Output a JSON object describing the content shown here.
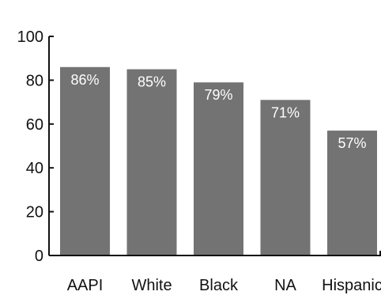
{
  "chart_data": {
    "type": "bar",
    "categories": [
      "AAPI",
      "White",
      "Black",
      "NA",
      "Hispanic"
    ],
    "values": [
      86,
      85,
      79,
      71,
      57
    ],
    "data_labels": [
      "86%",
      "85%",
      "79%",
      "71%",
      "57%"
    ],
    "yticks": [
      0,
      20,
      40,
      60,
      80,
      100
    ],
    "ytick_labels": [
      "0",
      "20",
      "40",
      "60",
      "80",
      "100"
    ],
    "ylim": [
      0,
      100
    ],
    "grid": false,
    "colors": {
      "bar": "#737373",
      "axis": "#111111",
      "data_label": "#ffffff"
    }
  }
}
